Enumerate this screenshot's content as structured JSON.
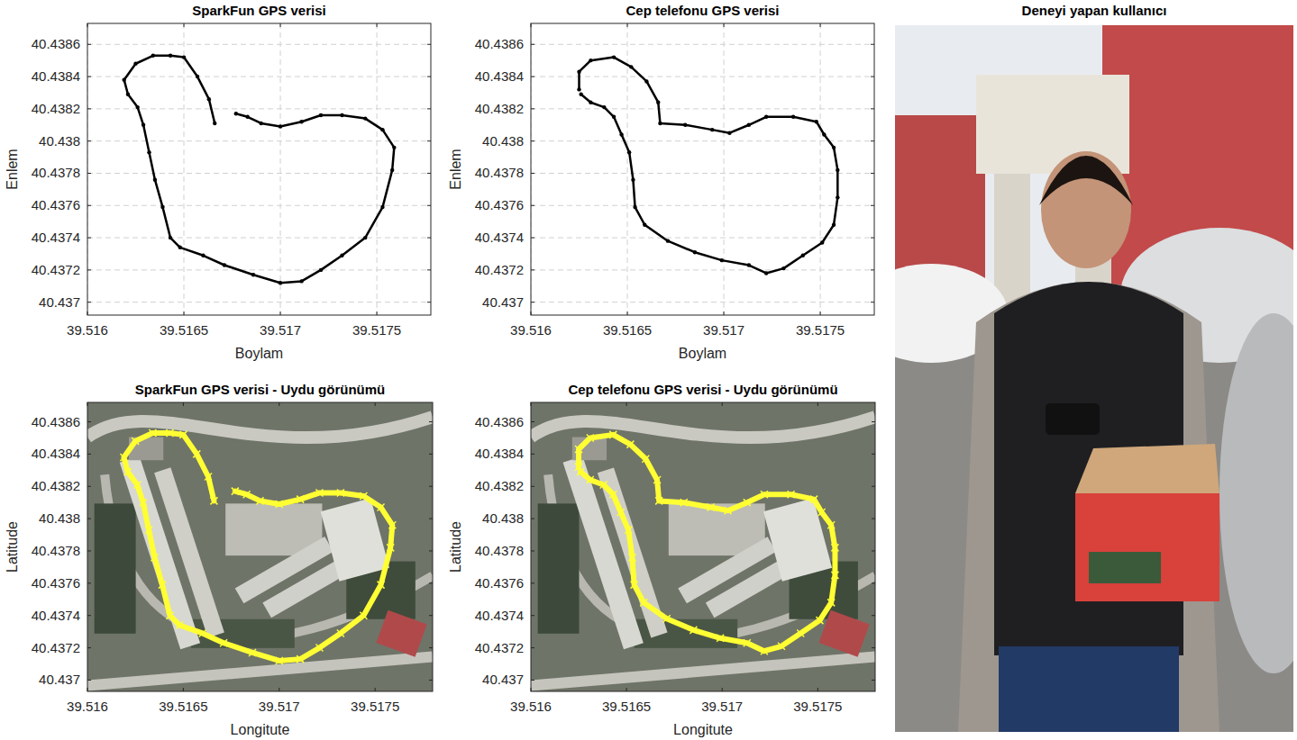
{
  "chart_data": [
    {
      "type": "scatter",
      "title": "SparkFun GPS verisi",
      "x_label": "Boylam",
      "y_label": "Enlem",
      "xlim": [
        39.516,
        39.51778
      ],
      "ylim": [
        40.43692,
        40.43873
      ],
      "xticks": [
        39.516,
        39.5165,
        39.517,
        39.5175
      ],
      "yticks": [
        40.437,
        40.4372,
        40.4374,
        40.4376,
        40.4378,
        40.438,
        40.4382,
        40.4384,
        40.4386
      ],
      "grid": true,
      "color": "#000000",
      "marker": "point",
      "line_style": "solid",
      "x": [
        39.51666,
        39.51663,
        39.51657,
        39.5165,
        39.51643,
        39.51634,
        39.51625,
        39.51619,
        39.51621,
        39.51626,
        39.51629,
        39.51632,
        39.51635,
        39.51639,
        39.51643,
        39.51648,
        39.5166,
        39.51671,
        39.51686,
        39.517,
        39.51711,
        39.51721,
        39.51732,
        39.51744,
        39.51753,
        39.51758,
        39.51759,
        39.51753,
        39.51744,
        39.51732,
        39.51721,
        39.51711,
        39.517,
        39.5169,
        39.51683,
        39.51677
      ],
      "values": [
        40.43811,
        40.43826,
        40.4384,
        40.43852,
        40.43853,
        40.43853,
        40.43848,
        40.43838,
        40.43829,
        40.43821,
        40.4381,
        40.43793,
        40.43776,
        40.43759,
        40.4374,
        40.43734,
        40.43729,
        40.43723,
        40.43717,
        40.43712,
        40.43713,
        40.4372,
        40.43729,
        40.4374,
        40.43759,
        40.43782,
        40.43796,
        40.43807,
        40.43814,
        40.43816,
        40.43816,
        40.43812,
        40.43809,
        40.43811,
        40.43815,
        40.43817
      ]
    },
    {
      "type": "scatter",
      "title": "Cep telefonu GPS verisi",
      "x_label": "Boylam",
      "y_label": "Enlem",
      "xlim": [
        39.516,
        39.51778
      ],
      "ylim": [
        40.43692,
        40.43873
      ],
      "xticks": [
        39.516,
        39.5165,
        39.517,
        39.5175
      ],
      "yticks": [
        40.437,
        40.4372,
        40.4374,
        40.4376,
        40.4378,
        40.438,
        40.4382,
        40.4384,
        40.4386
      ],
      "grid": true,
      "color": "#000000",
      "marker": "point",
      "line_style": "solid",
      "x": [
        39.51625,
        39.51625,
        39.51631,
        39.51643,
        39.51652,
        39.5166,
        39.51666,
        39.51667,
        39.5168,
        39.51694,
        39.51703,
        39.51713,
        39.51722,
        39.51736,
        39.51748,
        39.51752,
        39.51757,
        39.51759,
        39.51759,
        39.51757,
        39.51751,
        39.51741,
        39.51731,
        39.51722,
        39.51713,
        39.51699,
        39.51685,
        39.51671,
        39.51659,
        39.51654,
        39.51653,
        39.51651,
        39.51647,
        39.51643,
        39.51638,
        39.51631,
        39.51626
      ],
      "values": [
        40.43832,
        40.43843,
        40.4385,
        40.43852,
        40.43846,
        40.43837,
        40.43824,
        40.43811,
        40.4381,
        40.43807,
        40.43805,
        40.4381,
        40.43815,
        40.43815,
        40.43812,
        40.43804,
        40.43796,
        40.43782,
        40.43765,
        40.43748,
        40.43737,
        40.43729,
        40.43721,
        40.43718,
        40.43723,
        40.43726,
        40.43731,
        40.43738,
        40.43748,
        40.43759,
        40.43776,
        40.43793,
        40.43804,
        40.43815,
        40.43821,
        40.43824,
        40.43829
      ]
    },
    {
      "type": "map",
      "title": "SparkFun GPS verisi - Uydu görünümü",
      "x_label": "Longitute",
      "y_label": "Latitude",
      "xlim": [
        39.516,
        39.5178
      ],
      "ylim": [
        40.43693,
        40.43872
      ],
      "xticks": [
        39.516,
        39.5165,
        39.517,
        39.5175
      ],
      "yticks": [
        40.437,
        40.4372,
        40.4374,
        40.4376,
        40.4378,
        40.438,
        40.4382,
        40.4384,
        40.4386
      ],
      "grid": false,
      "color": "#ffff33",
      "marker": "x",
      "line_style": "solid",
      "x": [
        39.51666,
        39.51663,
        39.51657,
        39.5165,
        39.51643,
        39.51634,
        39.51625,
        39.51619,
        39.51621,
        39.51626,
        39.51629,
        39.51632,
        39.51635,
        39.51639,
        39.51643,
        39.51648,
        39.5166,
        39.51671,
        39.51686,
        39.517,
        39.51711,
        39.51721,
        39.51732,
        39.51744,
        39.51753,
        39.51758,
        39.51759,
        39.51753,
        39.51744,
        39.51732,
        39.51721,
        39.51711,
        39.517,
        39.5169,
        39.51683,
        39.51677
      ],
      "values": [
        40.43811,
        40.43826,
        40.4384,
        40.43852,
        40.43853,
        40.43853,
        40.43848,
        40.43838,
        40.43829,
        40.43821,
        40.4381,
        40.43793,
        40.43776,
        40.43759,
        40.4374,
        40.43734,
        40.43729,
        40.43723,
        40.43717,
        40.43712,
        40.43713,
        40.4372,
        40.43729,
        40.4374,
        40.43759,
        40.43782,
        40.43796,
        40.43807,
        40.43814,
        40.43816,
        40.43816,
        40.43812,
        40.43809,
        40.43811,
        40.43815,
        40.43817
      ]
    },
    {
      "type": "map",
      "title": "Cep telefonu GPS verisi - Uydu görünümü",
      "x_label": "Longitute",
      "y_label": "Latitude",
      "xlim": [
        39.516,
        39.5178
      ],
      "ylim": [
        40.43693,
        40.43872
      ],
      "xticks": [
        39.516,
        39.5165,
        39.517,
        39.5175
      ],
      "yticks": [
        40.437,
        40.4372,
        40.4374,
        40.4376,
        40.4378,
        40.438,
        40.4382,
        40.4384,
        40.4386
      ],
      "grid": false,
      "color": "#ffff33",
      "marker": "x",
      "line_style": "solid",
      "x": [
        39.51625,
        39.51625,
        39.51631,
        39.51643,
        39.51652,
        39.5166,
        39.51666,
        39.51667,
        39.5168,
        39.51694,
        39.51703,
        39.51713,
        39.51722,
        39.51736,
        39.51748,
        39.51752,
        39.51757,
        39.51759,
        39.51759,
        39.51757,
        39.51751,
        39.51741,
        39.51731,
        39.51722,
        39.51713,
        39.51699,
        39.51685,
        39.51671,
        39.51659,
        39.51654,
        39.51653,
        39.51651,
        39.51647,
        39.51643,
        39.51638,
        39.51631,
        39.51626
      ],
      "values": [
        40.43832,
        40.43843,
        40.4385,
        40.43852,
        40.43846,
        40.43837,
        40.43824,
        40.43811,
        40.4381,
        40.43807,
        40.43805,
        40.4381,
        40.43815,
        40.43815,
        40.43812,
        40.43804,
        40.43796,
        40.43782,
        40.43765,
        40.43748,
        40.43737,
        40.43729,
        40.43721,
        40.43718,
        40.43723,
        40.43726,
        40.43731,
        40.43738,
        40.43748,
        40.43759,
        40.43776,
        40.43793,
        40.43804,
        40.43815,
        40.43821,
        40.43824,
        40.43829
      ]
    }
  ],
  "photo": {
    "title": "Deneyi yapan kullanıcı"
  }
}
